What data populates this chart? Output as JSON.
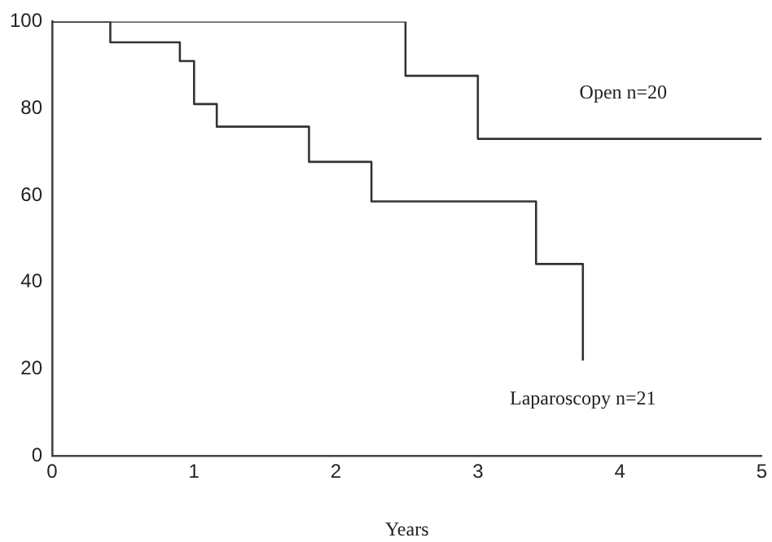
{
  "chart_data": {
    "type": "step",
    "xlabel": "Years",
    "xlim": [
      0,
      5
    ],
    "xticks": [
      0,
      1,
      2,
      3,
      4,
      5
    ],
    "ylim": [
      0,
      100
    ],
    "yticks": [
      0,
      20,
      40,
      60,
      80,
      100
    ],
    "grid": false,
    "legend": false,
    "marker": "none",
    "line_style": "solid",
    "series": [
      {
        "name": "Open n=20",
        "color": "#333333",
        "x": [
          0,
          2.49,
          3.0,
          5
        ],
        "values": [
          100,
          87.5,
          73,
          73
        ]
      },
      {
        "name": "Laparoscopy n=21",
        "color": "#333333",
        "x": [
          0,
          0.41,
          0.9,
          1.0,
          1.16,
          1.81,
          2.25,
          3.41,
          3.74
        ],
        "values": [
          100,
          95.2,
          90.9,
          81,
          75.8,
          67.7,
          58.6,
          44.2,
          22
        ]
      }
    ]
  }
}
